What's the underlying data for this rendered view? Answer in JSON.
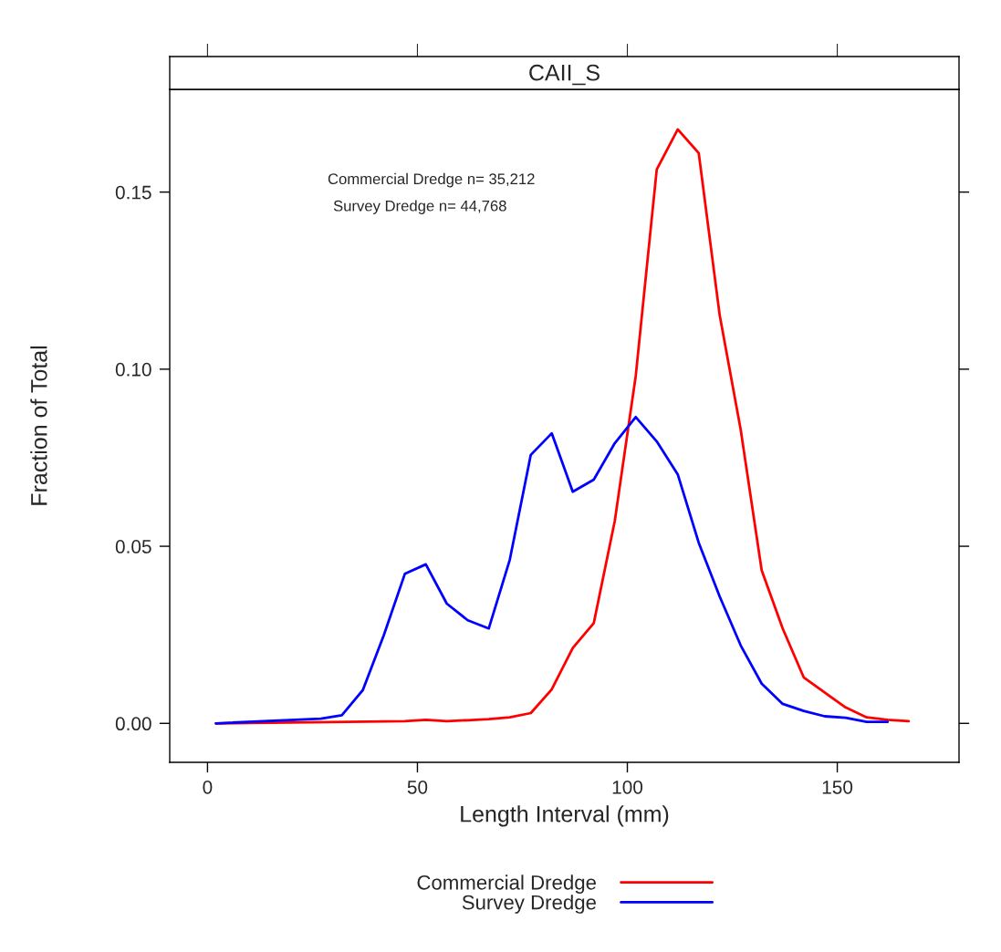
{
  "chart_data": {
    "type": "line",
    "title": "CAII_S",
    "xlabel": "Length Interval (mm)",
    "ylabel": "Fraction of Total",
    "annotations": [
      "Commercial Dredge n= 35,212",
      "Survey Dredge n= 44,768"
    ],
    "series": [
      {
        "name": "Commercial Dredge",
        "color": "#ff0000",
        "x": [
          2,
          47,
          52,
          57,
          62,
          67,
          72,
          77,
          82,
          87,
          92,
          97,
          102,
          107,
          112,
          117,
          122,
          127,
          132,
          137,
          142,
          147,
          152,
          157,
          162,
          167
        ],
        "values": [
          0.0,
          0.0006,
          0.001,
          0.0006,
          0.0009,
          0.0012,
          0.0017,
          0.0029,
          0.0096,
          0.0213,
          0.0283,
          0.0571,
          0.0981,
          0.1564,
          0.1677,
          0.161,
          0.1152,
          0.0829,
          0.0432,
          0.0268,
          0.013,
          0.0087,
          0.0045,
          0.0017,
          0.001,
          0.0006
        ]
      },
      {
        "name": "Survey Dredge",
        "color": "#0000ff",
        "x": [
          2,
          27,
          32,
          37,
          42,
          47,
          52,
          57,
          62,
          67,
          72,
          77,
          82,
          87,
          92,
          97,
          102,
          107,
          112,
          117,
          122,
          127,
          132,
          137,
          142,
          147,
          152,
          157,
          162
        ],
        "values": [
          0.0,
          0.0013,
          0.0023,
          0.0094,
          0.0249,
          0.0422,
          0.0449,
          0.0338,
          0.0291,
          0.0268,
          0.0462,
          0.0758,
          0.0819,
          0.0654,
          0.0688,
          0.0791,
          0.0865,
          0.0796,
          0.0703,
          0.051,
          0.0358,
          0.022,
          0.0112,
          0.0055,
          0.0035,
          0.002,
          0.0016,
          0.0004,
          0.0004
        ]
      }
    ],
    "xlim": [
      -9,
      179
    ],
    "xticks": [
      0,
      50,
      100,
      150
    ],
    "ylim": [
      -0.011,
      0.179
    ],
    "yticks": [
      {
        "value": 0,
        "label": "0.00"
      },
      {
        "value": 0.05,
        "label": "0.05"
      },
      {
        "value": 0.1,
        "label": "0.10"
      },
      {
        "value": 0.15,
        "label": "0.15"
      }
    ],
    "grid": false,
    "legend": "bottom",
    "marker": "none",
    "line_style": "solid"
  }
}
